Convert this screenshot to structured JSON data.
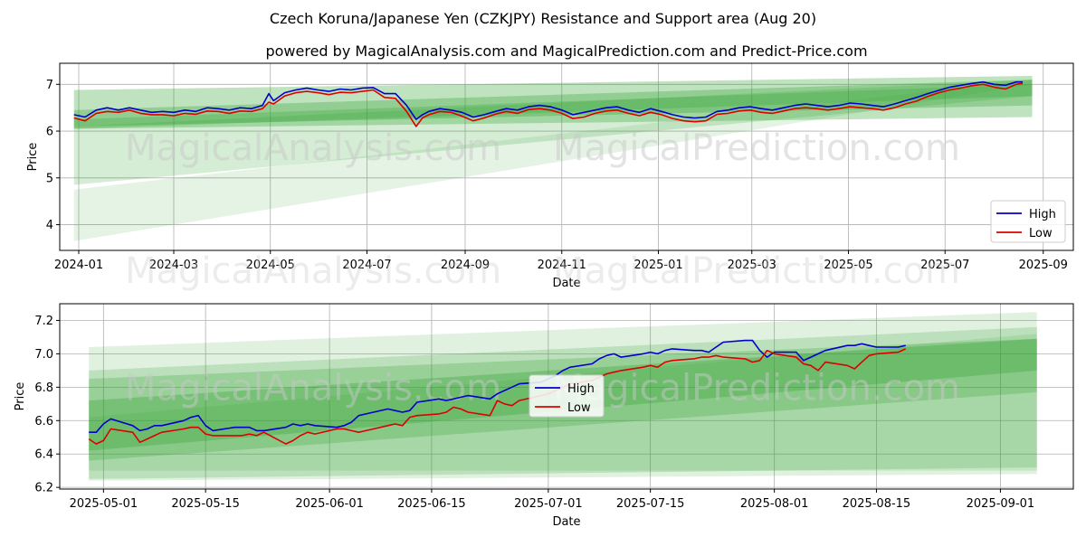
{
  "title": "Czech Koruna/Japanese Yen (CZKJPY) Resistance and Support area (Aug 20)",
  "subtitle": "powered by MagicalAnalysis.com and MagicalPrediction.com and Predict-Price.com",
  "watermarks": [
    "MagicalAnalysis.com",
    "MagicalPrediction.com"
  ],
  "colors": {
    "high": "#0000cc",
    "low": "#dd0000",
    "band": "#2ca02c",
    "grid": "#b0b0b0"
  },
  "chart_data": [
    {
      "type": "line",
      "xlabel": "Date",
      "ylabel": "Price",
      "xlim": [
        "2023-12-20",
        "2025-09-20"
      ],
      "ylim": [
        3.45,
        7.45
      ],
      "xticks": [
        "2024-01",
        "2024-03",
        "2024-05",
        "2024-07",
        "2024-09",
        "2024-11",
        "2025-01",
        "2025-03",
        "2025-05",
        "2025-07",
        "2025-09"
      ],
      "yticks": [
        4,
        5,
        6,
        7
      ],
      "grid": true,
      "legend": "lower-right",
      "bands": [
        {
          "x": [
            "2023-12-29",
            "2025-08-25"
          ],
          "lower": [
            3.65,
            7.0
          ],
          "upper": [
            4.75,
            7.1
          ],
          "opacity": 0.12
        },
        {
          "x": [
            "2023-12-29",
            "2025-08-25"
          ],
          "lower": [
            4.85,
            6.75
          ],
          "upper": [
            6.1,
            7.1
          ],
          "opacity": 0.2
        },
        {
          "x": [
            "2023-12-29",
            "2025-08-25"
          ],
          "lower": [
            6.05,
            6.3
          ],
          "upper": [
            6.88,
            7.18
          ],
          "opacity": 0.3
        },
        {
          "x": [
            "2023-12-29",
            "2025-08-25"
          ],
          "lower": [
            6.1,
            6.55
          ],
          "upper": [
            6.45,
            7.1
          ],
          "opacity": 0.3
        },
        {
          "x": [
            "2023-12-29",
            "2025-08-25"
          ],
          "lower": [
            6.05,
            6.75
          ],
          "upper": [
            6.25,
            7.0
          ],
          "opacity": 0.25
        }
      ],
      "series": [
        {
          "name": "High",
          "x": [
            "2023-12-29",
            "2024-01-05",
            "2024-01-12",
            "2024-01-19",
            "2024-01-26",
            "2024-02-02",
            "2024-02-09",
            "2024-02-16",
            "2024-02-23",
            "2024-03-01",
            "2024-03-08",
            "2024-03-15",
            "2024-03-22",
            "2024-03-29",
            "2024-04-05",
            "2024-04-12",
            "2024-04-19",
            "2024-04-26",
            "2024-04-30",
            "2024-05-03",
            "2024-05-10",
            "2024-05-17",
            "2024-05-24",
            "2024-05-31",
            "2024-06-07",
            "2024-06-14",
            "2024-06-21",
            "2024-06-28",
            "2024-07-05",
            "2024-07-12",
            "2024-07-19",
            "2024-07-26",
            "2024-08-01",
            "2024-08-05",
            "2024-08-09",
            "2024-08-16",
            "2024-08-23",
            "2024-08-30",
            "2024-09-06",
            "2024-09-13",
            "2024-09-20",
            "2024-09-27",
            "2024-10-04",
            "2024-10-11",
            "2024-10-18",
            "2024-10-25",
            "2024-11-01",
            "2024-11-08",
            "2024-11-15",
            "2024-11-22",
            "2024-11-29",
            "2024-12-06",
            "2024-12-13",
            "2024-12-20",
            "2024-12-27",
            "2025-01-03",
            "2025-01-10",
            "2025-01-17",
            "2025-01-24",
            "2025-01-31",
            "2025-02-07",
            "2025-02-14",
            "2025-02-21",
            "2025-02-28",
            "2025-03-07",
            "2025-03-14",
            "2025-03-21",
            "2025-03-28",
            "2025-04-04",
            "2025-04-11",
            "2025-04-18",
            "2025-04-25",
            "2025-05-02",
            "2025-05-09",
            "2025-05-16",
            "2025-05-23",
            "2025-05-30",
            "2025-06-06",
            "2025-06-13",
            "2025-06-20",
            "2025-06-27",
            "2025-07-04",
            "2025-07-11",
            "2025-07-18",
            "2025-07-25",
            "2025-08-01",
            "2025-08-08",
            "2025-08-15",
            "2025-08-19"
          ],
          "values": [
            6.35,
            6.3,
            6.45,
            6.5,
            6.45,
            6.5,
            6.45,
            6.4,
            6.42,
            6.4,
            6.45,
            6.42,
            6.5,
            6.48,
            6.45,
            6.5,
            6.48,
            6.55,
            6.8,
            6.65,
            6.82,
            6.88,
            6.92,
            6.88,
            6.85,
            6.9,
            6.88,
            6.92,
            6.93,
            6.8,
            6.8,
            6.55,
            6.25,
            6.35,
            6.42,
            6.48,
            6.45,
            6.4,
            6.3,
            6.35,
            6.42,
            6.48,
            6.45,
            6.52,
            6.55,
            6.52,
            6.45,
            6.35,
            6.4,
            6.45,
            6.5,
            6.52,
            6.45,
            6.4,
            6.48,
            6.42,
            6.35,
            6.3,
            6.28,
            6.3,
            6.42,
            6.45,
            6.5,
            6.52,
            6.48,
            6.45,
            6.5,
            6.55,
            6.58,
            6.55,
            6.52,
            6.55,
            6.6,
            6.58,
            6.55,
            6.52,
            6.58,
            6.65,
            6.72,
            6.8,
            6.87,
            6.94,
            6.98,
            7.02,
            7.05,
            7.0,
            6.98,
            7.05,
            7.05
          ]
        },
        {
          "name": "Low",
          "x": [
            "2023-12-29",
            "2024-01-05",
            "2024-01-12",
            "2024-01-19",
            "2024-01-26",
            "2024-02-02",
            "2024-02-09",
            "2024-02-16",
            "2024-02-23",
            "2024-03-01",
            "2024-03-08",
            "2024-03-15",
            "2024-03-22",
            "2024-03-29",
            "2024-04-05",
            "2024-04-12",
            "2024-04-19",
            "2024-04-26",
            "2024-04-30",
            "2024-05-03",
            "2024-05-10",
            "2024-05-17",
            "2024-05-24",
            "2024-05-31",
            "2024-06-07",
            "2024-06-14",
            "2024-06-21",
            "2024-06-28",
            "2024-07-05",
            "2024-07-12",
            "2024-07-19",
            "2024-07-26",
            "2024-08-01",
            "2024-08-05",
            "2024-08-09",
            "2024-08-16",
            "2024-08-23",
            "2024-08-30",
            "2024-09-06",
            "2024-09-13",
            "2024-09-20",
            "2024-09-27",
            "2024-10-04",
            "2024-10-11",
            "2024-10-18",
            "2024-10-25",
            "2024-11-01",
            "2024-11-08",
            "2024-11-15",
            "2024-11-22",
            "2024-11-29",
            "2024-12-06",
            "2024-12-13",
            "2024-12-20",
            "2024-12-27",
            "2025-01-03",
            "2025-01-10",
            "2025-01-17",
            "2025-01-24",
            "2025-01-31",
            "2025-02-07",
            "2025-02-14",
            "2025-02-21",
            "2025-02-28",
            "2025-03-07",
            "2025-03-14",
            "2025-03-21",
            "2025-03-28",
            "2025-04-04",
            "2025-04-11",
            "2025-04-18",
            "2025-04-25",
            "2025-05-02",
            "2025-05-09",
            "2025-05-16",
            "2025-05-23",
            "2025-05-30",
            "2025-06-06",
            "2025-06-13",
            "2025-06-20",
            "2025-06-27",
            "2025-07-04",
            "2025-07-11",
            "2025-07-18",
            "2025-07-25",
            "2025-08-01",
            "2025-08-08",
            "2025-08-15",
            "2025-08-19"
          ],
          "values": [
            6.28,
            6.22,
            6.38,
            6.42,
            6.4,
            6.45,
            6.38,
            6.35,
            6.35,
            6.33,
            6.38,
            6.36,
            6.43,
            6.42,
            6.38,
            6.43,
            6.42,
            6.48,
            6.62,
            6.58,
            6.75,
            6.82,
            6.85,
            6.82,
            6.78,
            6.83,
            6.82,
            6.85,
            6.88,
            6.72,
            6.7,
            6.42,
            6.1,
            6.28,
            6.35,
            6.42,
            6.4,
            6.32,
            6.22,
            6.28,
            6.36,
            6.42,
            6.38,
            6.46,
            6.48,
            6.45,
            6.38,
            6.27,
            6.3,
            6.38,
            6.43,
            6.45,
            6.38,
            6.33,
            6.4,
            6.35,
            6.27,
            6.22,
            6.2,
            6.22,
            6.36,
            6.38,
            6.43,
            6.45,
            6.4,
            6.38,
            6.43,
            6.48,
            6.5,
            6.48,
            6.45,
            6.48,
            6.52,
            6.5,
            6.48,
            6.45,
            6.5,
            6.58,
            6.64,
            6.74,
            6.82,
            6.88,
            6.92,
            6.97,
            7.0,
            6.94,
            6.9,
            7.0,
            7.02
          ]
        }
      ]
    },
    {
      "type": "line",
      "xlabel": "Date",
      "ylabel": "Price",
      "xlim": [
        "2025-04-25",
        "2025-09-11"
      ],
      "ylim": [
        6.19,
        7.3
      ],
      "xticks": [
        "2025-05-01",
        "2025-05-15",
        "2025-06-01",
        "2025-06-15",
        "2025-07-01",
        "2025-07-15",
        "2025-08-01",
        "2025-08-15",
        "2025-09-01"
      ],
      "yticks": [
        6.2,
        6.4,
        6.6,
        6.8,
        7.0,
        7.2
      ],
      "grid": true,
      "legend": "center",
      "bands": [
        {
          "x": [
            "2025-04-29",
            "2025-09-06"
          ],
          "lower": [
            6.24,
            6.28
          ],
          "upper": [
            7.04,
            7.25
          ],
          "opacity": 0.15
        },
        {
          "x": [
            "2025-04-29",
            "2025-09-06"
          ],
          "lower": [
            6.25,
            6.32
          ],
          "upper": [
            6.9,
            7.16
          ],
          "opacity": 0.2
        },
        {
          "x": [
            "2025-04-29",
            "2025-09-06"
          ],
          "lower": [
            6.36,
            6.77
          ],
          "upper": [
            6.85,
            7.09
          ],
          "opacity": 0.25
        },
        {
          "x": [
            "2025-04-29",
            "2025-09-06"
          ],
          "lower": [
            6.42,
            6.9
          ],
          "upper": [
            6.72,
            7.09
          ],
          "opacity": 0.3
        },
        {
          "x": [
            "2025-04-29",
            "2025-09-06"
          ],
          "lower": [
            6.3,
            6.3
          ],
          "upper": [
            6.62,
            7.12
          ],
          "opacity": 0.15
        }
      ],
      "series": [
        {
          "name": "High",
          "x": [
            "2025-04-29",
            "2025-04-30",
            "2025-05-01",
            "2025-05-02",
            "2025-05-05",
            "2025-05-06",
            "2025-05-07",
            "2025-05-08",
            "2025-05-09",
            "2025-05-12",
            "2025-05-13",
            "2025-05-14",
            "2025-05-15",
            "2025-05-16",
            "2025-05-19",
            "2025-05-20",
            "2025-05-21",
            "2025-05-22",
            "2025-05-23",
            "2025-05-26",
            "2025-05-27",
            "2025-05-28",
            "2025-05-29",
            "2025-05-30",
            "2025-06-02",
            "2025-06-03",
            "2025-06-04",
            "2025-06-05",
            "2025-06-06",
            "2025-06-09",
            "2025-06-10",
            "2025-06-11",
            "2025-06-12",
            "2025-06-13",
            "2025-06-16",
            "2025-06-17",
            "2025-06-18",
            "2025-06-19",
            "2025-06-20",
            "2025-06-23",
            "2025-06-24",
            "2025-06-25",
            "2025-06-26",
            "2025-06-27",
            "2025-06-30",
            "2025-07-01",
            "2025-07-02",
            "2025-07-03",
            "2025-07-04",
            "2025-07-07",
            "2025-07-08",
            "2025-07-09",
            "2025-07-10",
            "2025-07-11",
            "2025-07-14",
            "2025-07-15",
            "2025-07-16",
            "2025-07-17",
            "2025-07-18",
            "2025-07-21",
            "2025-07-22",
            "2025-07-23",
            "2025-07-24",
            "2025-07-25",
            "2025-07-28",
            "2025-07-29",
            "2025-07-30",
            "2025-07-31",
            "2025-08-01",
            "2025-08-04",
            "2025-08-05",
            "2025-08-06",
            "2025-08-07",
            "2025-08-08",
            "2025-08-11",
            "2025-08-12",
            "2025-08-13",
            "2025-08-14",
            "2025-08-15",
            "2025-08-18",
            "2025-08-19"
          ],
          "values": [
            6.53,
            6.53,
            6.58,
            6.61,
            6.57,
            6.54,
            6.55,
            6.57,
            6.57,
            6.6,
            6.62,
            6.63,
            6.57,
            6.54,
            6.56,
            6.56,
            6.56,
            6.54,
            6.54,
            6.56,
            6.58,
            6.57,
            6.58,
            6.57,
            6.56,
            6.57,
            6.59,
            6.63,
            6.64,
            6.67,
            6.66,
            6.65,
            6.66,
            6.71,
            6.73,
            6.72,
            6.73,
            6.74,
            6.75,
            6.73,
            6.76,
            6.78,
            6.8,
            6.82,
            6.83,
            6.85,
            6.87,
            6.9,
            6.92,
            6.94,
            6.97,
            6.99,
            7.0,
            6.98,
            7.0,
            7.01,
            7.0,
            7.02,
            7.03,
            7.02,
            7.02,
            7.01,
            7.04,
            7.07,
            7.08,
            7.08,
            7.02,
            6.98,
            7.01,
            7.01,
            6.96,
            6.98,
            7.0,
            7.02,
            7.05,
            7.05,
            7.06,
            7.05,
            7.04,
            7.04,
            7.05
          ]
        },
        {
          "name": "Low",
          "x": [
            "2025-04-29",
            "2025-04-30",
            "2025-05-01",
            "2025-05-02",
            "2025-05-05",
            "2025-05-06",
            "2025-05-07",
            "2025-05-08",
            "2025-05-09",
            "2025-05-12",
            "2025-05-13",
            "2025-05-14",
            "2025-05-15",
            "2025-05-16",
            "2025-05-19",
            "2025-05-20",
            "2025-05-21",
            "2025-05-22",
            "2025-05-23",
            "2025-05-26",
            "2025-05-27",
            "2025-05-28",
            "2025-05-29",
            "2025-05-30",
            "2025-06-02",
            "2025-06-03",
            "2025-06-04",
            "2025-06-05",
            "2025-06-06",
            "2025-06-09",
            "2025-06-10",
            "2025-06-11",
            "2025-06-12",
            "2025-06-13",
            "2025-06-16",
            "2025-06-17",
            "2025-06-18",
            "2025-06-19",
            "2025-06-20",
            "2025-06-23",
            "2025-06-24",
            "2025-06-25",
            "2025-06-26",
            "2025-06-27",
            "2025-06-30",
            "2025-07-01",
            "2025-07-02",
            "2025-07-03",
            "2025-07-04",
            "2025-07-07",
            "2025-07-08",
            "2025-07-09",
            "2025-07-10",
            "2025-07-11",
            "2025-07-14",
            "2025-07-15",
            "2025-07-16",
            "2025-07-17",
            "2025-07-18",
            "2025-07-21",
            "2025-07-22",
            "2025-07-23",
            "2025-07-24",
            "2025-07-25",
            "2025-07-28",
            "2025-07-29",
            "2025-07-30",
            "2025-07-31",
            "2025-08-01",
            "2025-08-04",
            "2025-08-05",
            "2025-08-06",
            "2025-08-07",
            "2025-08-08",
            "2025-08-11",
            "2025-08-12",
            "2025-08-13",
            "2025-08-14",
            "2025-08-15",
            "2025-08-18",
            "2025-08-19"
          ],
          "values": [
            6.49,
            6.46,
            6.48,
            6.55,
            6.53,
            6.47,
            6.49,
            6.51,
            6.53,
            6.55,
            6.56,
            6.56,
            6.52,
            6.51,
            6.51,
            6.51,
            6.52,
            6.51,
            6.53,
            6.46,
            6.48,
            6.51,
            6.53,
            6.52,
            6.55,
            6.55,
            6.54,
            6.53,
            6.54,
            6.57,
            6.58,
            6.57,
            6.62,
            6.63,
            6.64,
            6.65,
            6.68,
            6.67,
            6.65,
            6.63,
            6.72,
            6.7,
            6.69,
            6.72,
            6.75,
            6.76,
            6.78,
            6.8,
            6.82,
            6.84,
            6.86,
            6.88,
            6.89,
            6.9,
            6.92,
            6.93,
            6.92,
            6.95,
            6.96,
            6.97,
            6.98,
            6.98,
            6.99,
            6.98,
            6.97,
            6.95,
            6.96,
            7.02,
            7.0,
            6.98,
            6.94,
            6.93,
            6.9,
            6.95,
            6.93,
            6.91,
            6.95,
            6.99,
            7.0,
            7.01,
            7.03
          ]
        }
      ]
    }
  ]
}
